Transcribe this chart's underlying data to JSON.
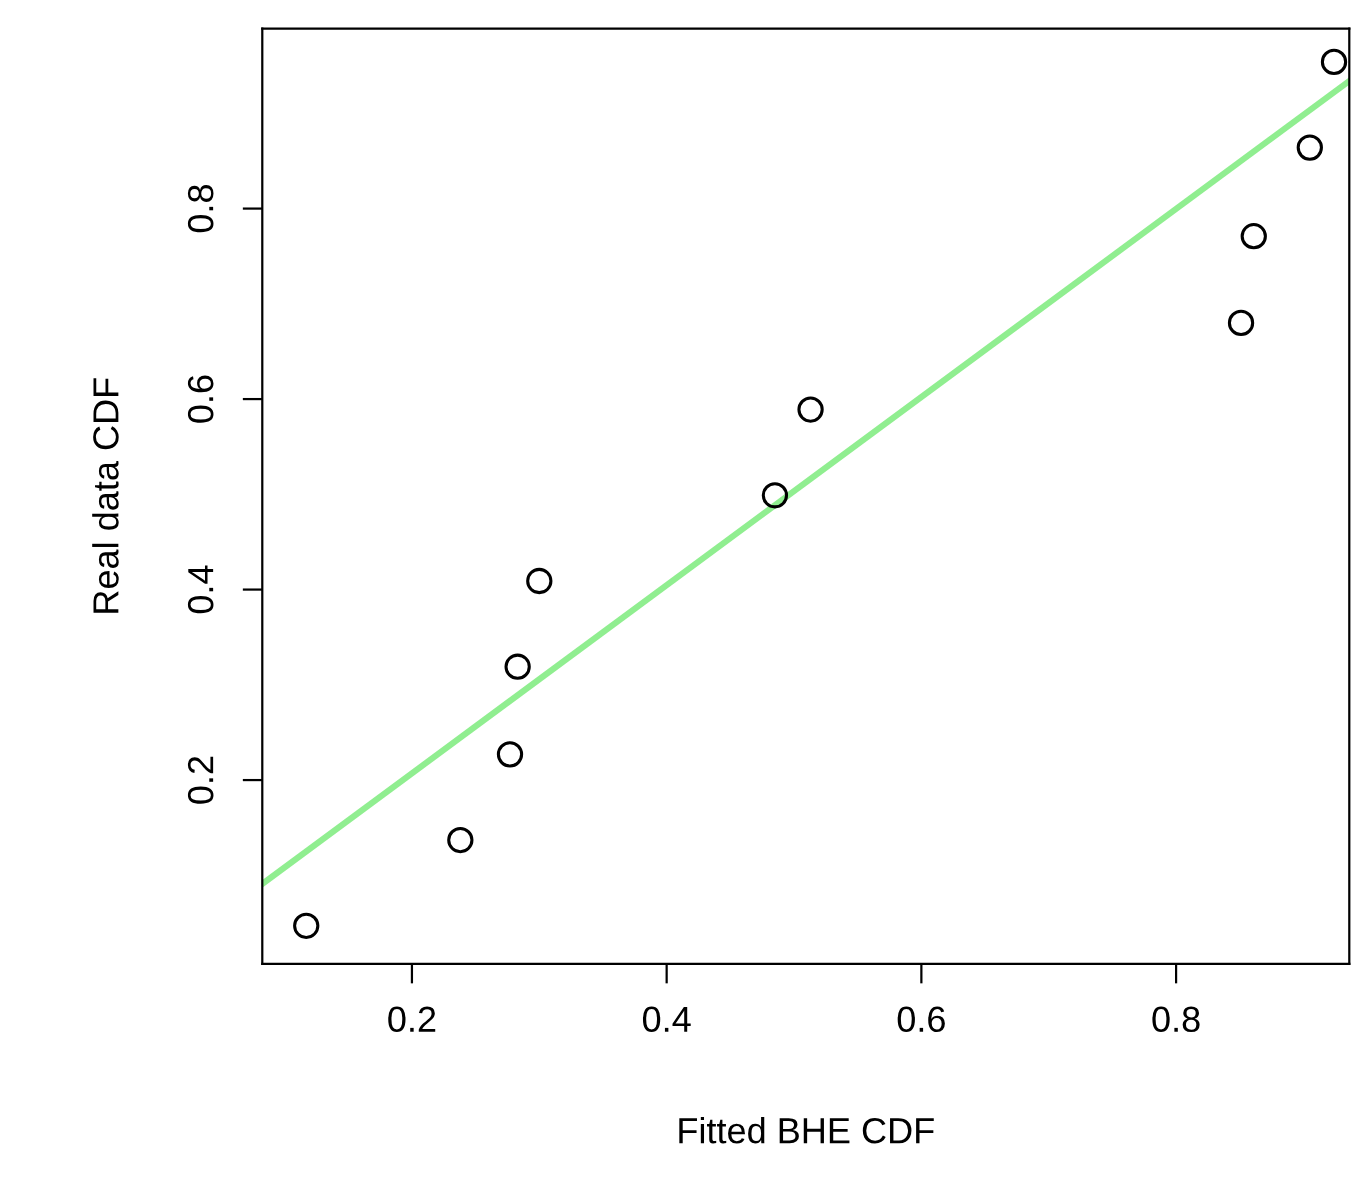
{
  "chart_data": {
    "type": "scatter",
    "xlabel": "Fitted BHE CDF",
    "ylabel": "Real data CDF",
    "xlim": [
      0.0825,
      0.936
    ],
    "ylim": [
      0.007,
      0.989
    ],
    "xticks": [
      0.2,
      0.4,
      0.6,
      0.8
    ],
    "yticks": [
      0.2,
      0.4,
      0.6,
      0.8
    ],
    "grid": false,
    "legend": false,
    "series": [
      {
        "marker": "circle",
        "color": "#000000",
        "x": [
          0.117,
          0.238,
          0.277,
          0.283,
          0.3,
          0.485,
          0.513,
          0.851,
          0.861,
          0.905,
          0.924
        ],
        "values": [
          0.047,
          0.137,
          0.227,
          0.319,
          0.409,
          0.499,
          0.589,
          0.68,
          0.771,
          0.864,
          0.954
        ]
      },
      {
        "type": "line",
        "color": "#90ee90",
        "line_style": "solid",
        "x": [
          0.0825,
          0.936
        ],
        "values": [
          0.091,
          0.934
        ]
      }
    ]
  }
}
